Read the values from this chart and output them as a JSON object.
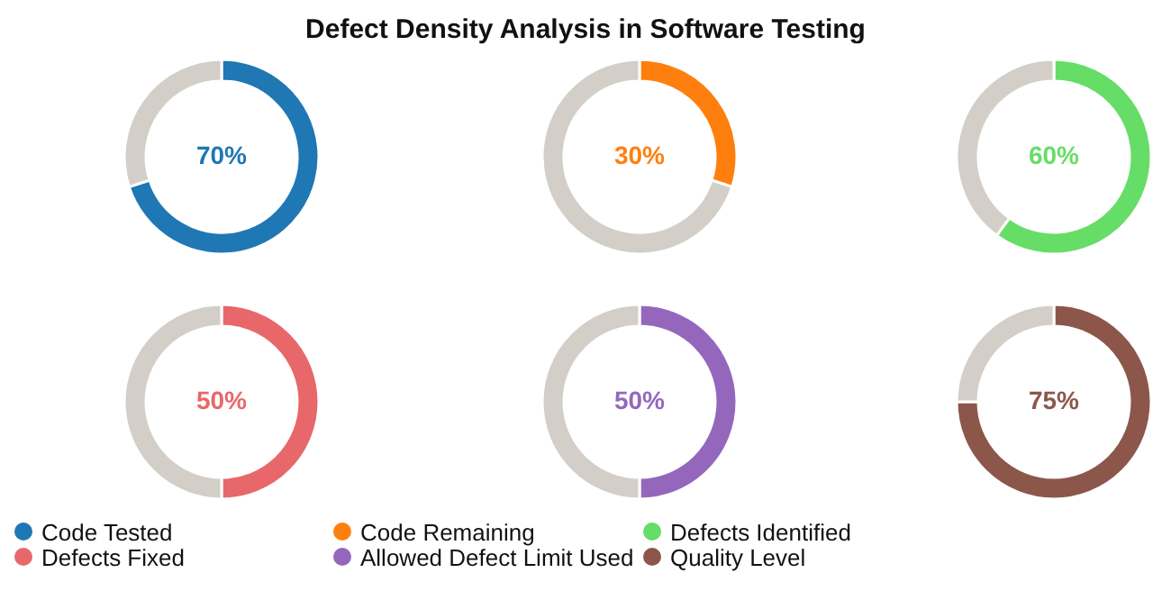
{
  "chart_data": [
    {
      "type": "donut",
      "categories": [
        "Code Tested",
        null
      ],
      "values": [
        70,
        30
      ],
      "colors": [
        "#1f77b4",
        "#d3cfc8"
      ],
      "value_labels": [
        "70%",
        null
      ],
      "legend": "bottom"
    },
    {
      "type": "donut",
      "title": "Defect Density Analysis in Software Testing",
      "categories": [
        "Code Remaining",
        null
      ],
      "values": [
        30,
        70
      ],
      "colors": [
        "#ff7f0e",
        "#d3cfc8"
      ],
      "value_labels": [
        "30%",
        null
      ],
      "legend": "bottom"
    },
    {
      "type": "donut",
      "categories": [
        "Defects Identified",
        null
      ],
      "values": [
        60,
        40
      ],
      "colors": [
        "#66dd66",
        "#d3cfc8"
      ],
      "value_labels": [
        "60%",
        null
      ],
      "legend": "bottom"
    },
    {
      "type": "donut",
      "categories": [
        "Defects Fixed",
        null
      ],
      "values": [
        50,
        50
      ],
      "colors": [
        "#e8676a",
        "#d3cfc8"
      ],
      "value_labels": [
        "50%",
        null
      ],
      "legend": "bottom"
    },
    {
      "type": "donut",
      "categories": [
        "Allowed Defect Limit Used",
        null
      ],
      "values": [
        50,
        50
      ],
      "colors": [
        "#9467bd",
        "#d3cfc8"
      ],
      "value_labels": [
        "50%",
        null
      ],
      "legend": "bottom"
    },
    {
      "type": "donut",
      "categories": [
        "Quality Level",
        null
      ],
      "values": [
        75,
        25
      ],
      "colors": [
        "#8c564b",
        "#d3cfc8"
      ],
      "value_labels": [
        "75%",
        null
      ],
      "legend": "bottom"
    }
  ]
}
